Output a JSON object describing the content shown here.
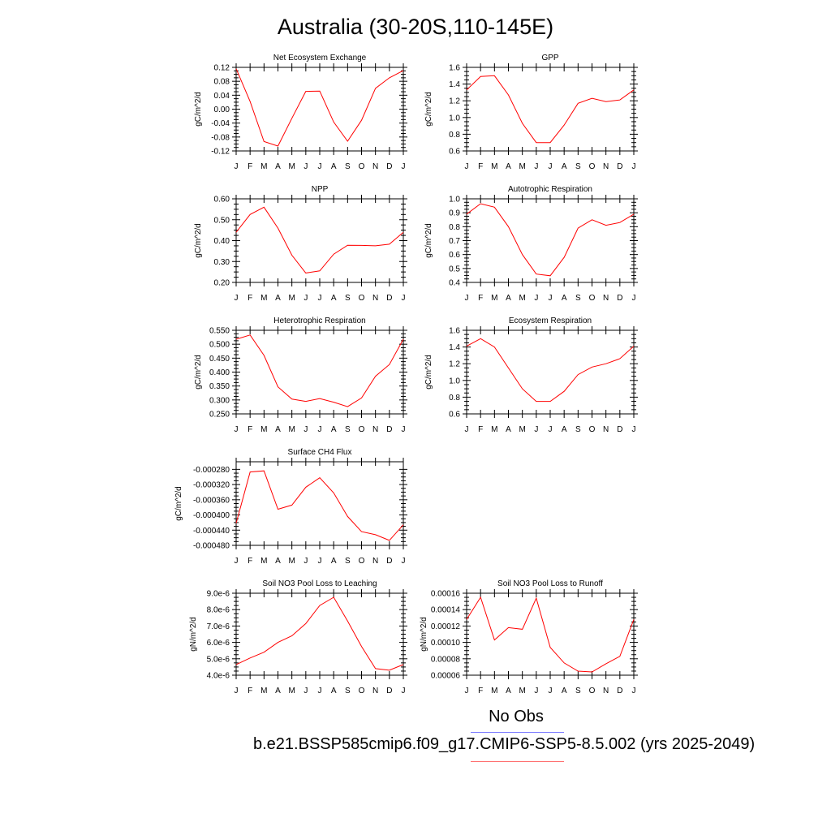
{
  "page": {
    "title": "Australia (30-20S,110-145E)"
  },
  "legend": {
    "obs_label": "No Obs",
    "case_label": "b.e21.BSSP585cmip6.f09_g17.CMIP6-SSP5-8.5.002 (yrs 2025-2049)",
    "obs_color": "#8080ff",
    "case_color": "#ff6b6b"
  },
  "series_color": "#ff0000",
  "chart_data": [
    {
      "type": "line",
      "title": "Net Ecosystem Exchange",
      "ylabel": "gC/m^2/d",
      "categories": [
        "J",
        "F",
        "M",
        "A",
        "M",
        "J",
        "J",
        "A",
        "S",
        "O",
        "N",
        "D",
        "J"
      ],
      "values": [
        0.116,
        0.022,
        -0.093,
        -0.106,
        -0.026,
        0.051,
        0.052,
        -0.037,
        -0.092,
        -0.032,
        0.06,
        0.09,
        0.111
      ],
      "ylim": [
        -0.12,
        0.12
      ],
      "yticks": [
        -0.12,
        -0.08,
        -0.04,
        0.0,
        0.04,
        0.08,
        0.12
      ],
      "yticklabels": [
        "-0.12",
        "-0.08",
        "-0.04",
        "0.00",
        "0.04",
        "0.08",
        "0.12"
      ]
    },
    {
      "type": "line",
      "title": "GPP",
      "ylabel": "gC/m^2/d",
      "categories": [
        "J",
        "F",
        "M",
        "A",
        "M",
        "J",
        "J",
        "A",
        "S",
        "O",
        "N",
        "D",
        "J"
      ],
      "values": [
        1.33,
        1.49,
        1.5,
        1.27,
        0.93,
        0.7,
        0.7,
        0.91,
        1.17,
        1.23,
        1.19,
        1.21,
        1.33
      ],
      "ylim": [
        0.6,
        1.6
      ],
      "yticks": [
        0.6,
        0.8,
        1.0,
        1.2,
        1.4,
        1.6
      ],
      "yticklabels": [
        "0.6",
        "0.8",
        "1.0",
        "1.2",
        "1.4",
        "1.6"
      ]
    },
    {
      "type": "line",
      "title": "NPP",
      "ylabel": "gC/m^2/d",
      "categories": [
        "J",
        "F",
        "M",
        "A",
        "M",
        "J",
        "J",
        "A",
        "S",
        "O",
        "N",
        "D",
        "J"
      ],
      "values": [
        0.44,
        0.525,
        0.56,
        0.46,
        0.33,
        0.245,
        0.255,
        0.335,
        0.378,
        0.377,
        0.375,
        0.383,
        0.44
      ],
      "ylim": [
        0.2,
        0.6
      ],
      "yticks": [
        0.2,
        0.3,
        0.4,
        0.5,
        0.6
      ],
      "yticklabels": [
        "0.20",
        "0.30",
        "0.40",
        "0.50",
        "0.60"
      ]
    },
    {
      "type": "line",
      "title": "Autotrophic Respiration",
      "ylabel": "gC/m^2/d",
      "categories": [
        "J",
        "F",
        "M",
        "A",
        "M",
        "J",
        "J",
        "A",
        "S",
        "O",
        "N",
        "D",
        "J"
      ],
      "values": [
        0.89,
        0.965,
        0.94,
        0.8,
        0.6,
        0.46,
        0.448,
        0.58,
        0.79,
        0.85,
        0.81,
        0.83,
        0.89
      ],
      "ylim": [
        0.4,
        1.0
      ],
      "yticks": [
        0.4,
        0.5,
        0.6,
        0.7,
        0.8,
        0.9,
        1.0
      ],
      "yticklabels": [
        "0.4",
        "0.5",
        "0.6",
        "0.7",
        "0.8",
        "0.9",
        "1.0"
      ]
    },
    {
      "type": "line",
      "title": "Heterotrophic Respiration",
      "ylabel": "gC/m^2/d",
      "categories": [
        "J",
        "F",
        "M",
        "A",
        "M",
        "J",
        "J",
        "A",
        "S",
        "O",
        "N",
        "D",
        "J"
      ],
      "values": [
        0.518,
        0.533,
        0.46,
        0.347,
        0.303,
        0.295,
        0.305,
        0.292,
        0.276,
        0.307,
        0.385,
        0.427,
        0.518
      ],
      "ylim": [
        0.25,
        0.55
      ],
      "yticks": [
        0.25,
        0.3,
        0.35,
        0.4,
        0.45,
        0.5,
        0.55
      ],
      "yticklabels": [
        "0.250",
        "0.300",
        "0.350",
        "0.400",
        "0.450",
        "0.500",
        "0.550"
      ]
    },
    {
      "type": "line",
      "title": "Ecosystem Respiration",
      "ylabel": "gC/m^2/d",
      "categories": [
        "J",
        "F",
        "M",
        "A",
        "M",
        "J",
        "J",
        "A",
        "S",
        "O",
        "N",
        "D",
        "J"
      ],
      "values": [
        1.41,
        1.5,
        1.4,
        1.15,
        0.9,
        0.75,
        0.75,
        0.87,
        1.07,
        1.16,
        1.2,
        1.26,
        1.41
      ],
      "ylim": [
        0.6,
        1.6
      ],
      "yticks": [
        0.6,
        0.8,
        1.0,
        1.2,
        1.4,
        1.6
      ],
      "yticklabels": [
        "0.6",
        "0.8",
        "1.0",
        "1.2",
        "1.4",
        "1.6"
      ]
    },
    {
      "type": "line",
      "title": "Surface CH4 Flux",
      "ylabel": "gC/m^2/d",
      "categories": [
        "J",
        "F",
        "M",
        "A",
        "M",
        "J",
        "J",
        "A",
        "S",
        "O",
        "N",
        "D",
        "J"
      ],
      "values": [
        -0.000422,
        -0.000287,
        -0.000284,
        -0.000385,
        -0.000374,
        -0.000327,
        -0.000302,
        -0.000342,
        -0.000404,
        -0.000444,
        -0.000452,
        -0.000467,
        -0.000426
      ],
      "ylim": [
        -0.00048,
        -0.00026
      ],
      "yticks": [
        -0.00048,
        -0.00044,
        -0.0004,
        -0.00036,
        -0.00032,
        -0.00028
      ],
      "yticklabels": [
        "-0.000480",
        "-0.000440",
        "-0.000400",
        "-0.000360",
        "-0.000320",
        "-0.000280"
      ]
    },
    {
      "type": "line",
      "title": "Soil NO3 Pool Loss to Leaching",
      "ylabel": "gN/m^2/d",
      "categories": [
        "J",
        "F",
        "M",
        "A",
        "M",
        "J",
        "J",
        "A",
        "S",
        "O",
        "N",
        "D",
        "J"
      ],
      "values": [
        4.65e-06,
        5.05e-06,
        5.4e-06,
        6e-06,
        6.4e-06,
        7.15e-06,
        8.25e-06,
        8.75e-06,
        7.3e-06,
        5.75e-06,
        4.4e-06,
        4.3e-06,
        4.65e-06
      ],
      "ylim": [
        4e-06,
        9e-06
      ],
      "yticks": [
        4e-06,
        5e-06,
        6e-06,
        7e-06,
        8e-06,
        9e-06
      ],
      "yticklabels": [
        "4.0e-6",
        "5.0e-6",
        "6.0e-6",
        "7.0e-6",
        "8.0e-6",
        "9.0e-6"
      ]
    },
    {
      "type": "line",
      "title": "Soil NO3 Pool Loss to Runoff",
      "ylabel": "gN/m^2/d",
      "categories": [
        "J",
        "F",
        "M",
        "A",
        "M",
        "J",
        "J",
        "A",
        "S",
        "O",
        "N",
        "D",
        "J"
      ],
      "values": [
        0.000128,
        0.000155,
        0.000103,
        0.000118,
        0.000116,
        0.000154,
        9.4e-05,
        7.5e-05,
        6.5e-05,
        6.4e-05,
        7.4e-05,
        8.3e-05,
        0.000128
      ],
      "ylim": [
        6e-05,
        0.00016
      ],
      "yticks": [
        6e-05,
        8e-05,
        0.0001,
        0.00012,
        0.00014,
        0.00016
      ],
      "yticklabels": [
        "0.00006",
        "0.00008",
        "0.00010",
        "0.00012",
        "0.00014",
        "0.00016"
      ]
    }
  ]
}
